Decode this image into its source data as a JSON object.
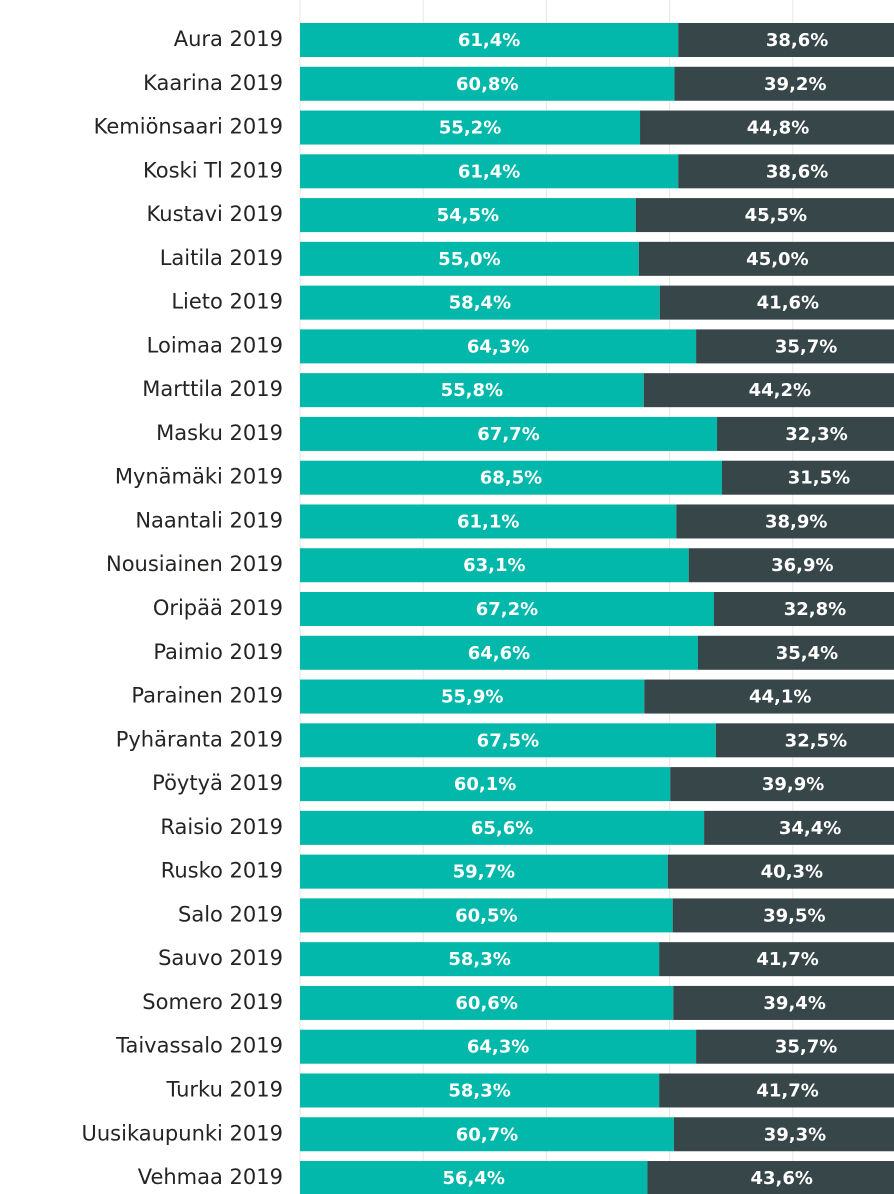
{
  "chart_data": {
    "type": "bar-stacked-horizontal",
    "categories": [
      "Aura 2019",
      "Kaarina 2019",
      "Kemiönsaari 2019",
      "Koski Tl 2019",
      "Kustavi 2019",
      "Laitila 2019",
      "Lieto 2019",
      "Loimaa 2019",
      "Marttila 2019",
      "Masku 2019",
      "Mynämäki 2019",
      "Naantali 2019",
      "Nousiainen 2019",
      "Oripää 2019",
      "Paimio 2019",
      "Parainen 2019",
      "Pyhäranta 2019",
      "Pöytyä 2019",
      "Raisio 2019",
      "Rusko 2019",
      "Salo 2019",
      "Sauvo 2019",
      "Somero 2019",
      "Taivassalo 2019",
      "Turku 2019",
      "Uusikaupunki 2019",
      "Vehmaa 2019"
    ],
    "series": [
      {
        "color": "#01b8aa",
        "values": [
          61.4,
          60.8,
          55.2,
          61.4,
          54.5,
          55.0,
          58.4,
          64.3,
          55.8,
          67.7,
          68.5,
          61.1,
          63.1,
          67.2,
          64.6,
          55.9,
          67.5,
          60.1,
          65.6,
          59.7,
          60.5,
          58.3,
          60.6,
          64.3,
          58.3,
          60.7,
          56.4
        ],
        "value_labels": [
          "61,4%",
          "60,8%",
          "55,2%",
          "61,4%",
          "54,5%",
          "55,0%",
          "58,4%",
          "64,3%",
          "55,8%",
          "67,7%",
          "68,5%",
          "61,1%",
          "63,1%",
          "67,2%",
          "64,6%",
          "55,9%",
          "67,5%",
          "60,1%",
          "65,6%",
          "59,7%",
          "60,5%",
          "58,3%",
          "60,6%",
          "64,3%",
          "58,3%",
          "60,7%",
          "56,4%"
        ]
      },
      {
        "color": "#374649",
        "values": [
          38.6,
          39.2,
          44.8,
          38.6,
          45.5,
          45.0,
          41.6,
          35.7,
          44.2,
          32.3,
          31.5,
          38.9,
          36.9,
          32.8,
          35.4,
          44.1,
          32.5,
          39.9,
          34.4,
          40.3,
          39.5,
          41.7,
          39.4,
          35.7,
          41.7,
          39.3,
          43.6
        ],
        "value_labels": [
          "38,6%",
          "39,2%",
          "44,8%",
          "38,6%",
          "45,5%",
          "45,0%",
          "41,6%",
          "35,7%",
          "44,2%",
          "32,3%",
          "31,5%",
          "38,9%",
          "36,9%",
          "32,8%",
          "35,4%",
          "44,1%",
          "32,5%",
          "39,9%",
          "34,4%",
          "40,3%",
          "39,5%",
          "41,7%",
          "39,4%",
          "35,7%",
          "41,7%",
          "39,3%",
          "43,6%"
        ]
      }
    ],
    "xlim": [
      0,
      100
    ],
    "xticks": [
      0,
      20,
      40,
      60,
      80,
      100
    ],
    "grid": true
  }
}
